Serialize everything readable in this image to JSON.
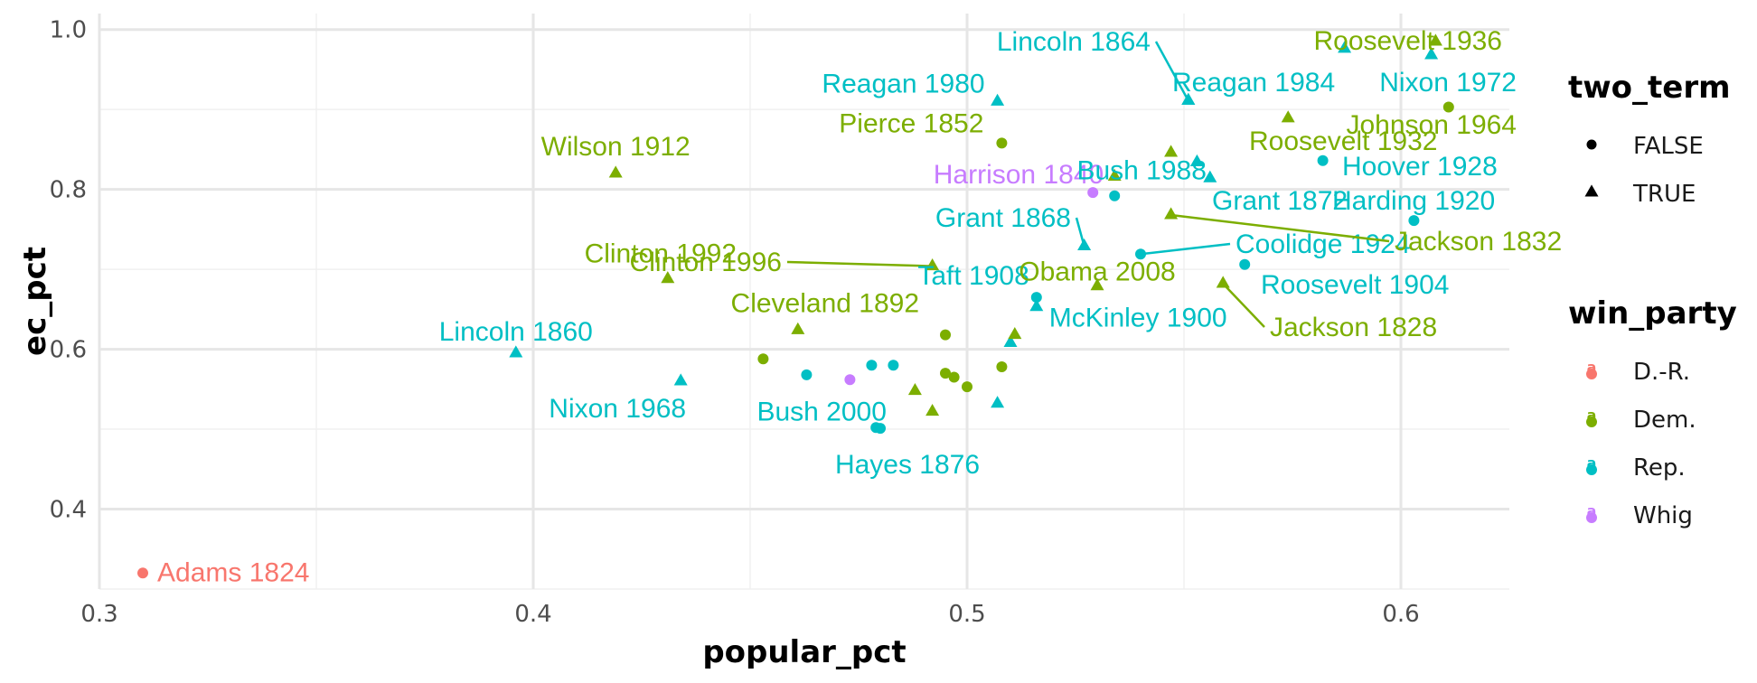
{
  "chart_data": {
    "type": "scatter",
    "xlabel": "popular_pct",
    "ylabel": "ec_pct",
    "xlim": [
      0.3,
      0.625
    ],
    "ylim": [
      0.3,
      1.02
    ],
    "x_ticks": [
      0.3,
      0.4,
      0.5,
      0.6
    ],
    "x_tick_labels": [
      "0.3",
      "0.4",
      "0.5",
      "0.6"
    ],
    "y_ticks": [
      0.4,
      0.6,
      0.8,
      1.0
    ],
    "y_tick_labels": [
      "0.4",
      "0.6",
      "0.8",
      "1.0"
    ],
    "grid": true,
    "legend_position": "right",
    "legends": [
      {
        "title": "two_term",
        "items": [
          {
            "label": "FALSE",
            "shape": "circle"
          },
          {
            "label": "TRUE",
            "shape": "triangle"
          }
        ]
      },
      {
        "title": "win_party",
        "items": [
          {
            "label": "D.-R.",
            "color": "#F8766D"
          },
          {
            "label": "Dem.",
            "color": "#7CAE00"
          },
          {
            "label": "Rep.",
            "color": "#00BFC4"
          },
          {
            "label": "Whig",
            "color": "#C77CFF"
          }
        ]
      }
    ],
    "party_colors": {
      "D.-R.": "#F8766D",
      "Dem.": "#7CAE00",
      "Rep.": "#00BFC4",
      "Whig": "#C77CFF"
    },
    "points": [
      {
        "x": 0.31,
        "y": 0.32,
        "party": "D.-R.",
        "two_term": false,
        "label": "Adams 1824"
      },
      {
        "x": 0.396,
        "y": 0.595,
        "party": "Rep.",
        "two_term": true,
        "label": "Lincoln 1860"
      },
      {
        "x": 0.419,
        "y": 0.82,
        "party": "Dem.",
        "two_term": true,
        "label": "Wilson 1912"
      },
      {
        "x": 0.431,
        "y": 0.688,
        "party": "Dem.",
        "two_term": true,
        "label": "Clinton 1992"
      },
      {
        "x": 0.434,
        "y": 0.56,
        "party": "Rep.",
        "two_term": true,
        "label": "Nixon 1968"
      },
      {
        "x": 0.453,
        "y": 0.588,
        "party": "Dem.",
        "two_term": false
      },
      {
        "x": 0.461,
        "y": 0.624,
        "party": "Dem.",
        "two_term": true,
        "label": "Cleveland 1892"
      },
      {
        "x": 0.463,
        "y": 0.568,
        "party": "Rep.",
        "two_term": false
      },
      {
        "x": 0.473,
        "y": 0.562,
        "party": "Whig",
        "two_term": false
      },
      {
        "x": 0.478,
        "y": 0.58,
        "party": "Rep.",
        "two_term": false
      },
      {
        "x": 0.479,
        "y": 0.502,
        "party": "Rep.",
        "two_term": false,
        "label": "Bush 2000"
      },
      {
        "x": 0.48,
        "y": 0.501,
        "party": "Rep.",
        "two_term": false,
        "label": "Hayes 1876"
      },
      {
        "x": 0.483,
        "y": 0.58,
        "party": "Rep.",
        "two_term": false
      },
      {
        "x": 0.488,
        "y": 0.548,
        "party": "Dem.",
        "two_term": true
      },
      {
        "x": 0.492,
        "y": 0.522,
        "party": "Dem.",
        "two_term": true
      },
      {
        "x": 0.492,
        "y": 0.704,
        "party": "Dem.",
        "two_term": true,
        "label": "Clinton 1996"
      },
      {
        "x": 0.495,
        "y": 0.618,
        "party": "Dem.",
        "two_term": false
      },
      {
        "x": 0.495,
        "y": 0.57,
        "party": "Dem.",
        "two_term": false
      },
      {
        "x": 0.497,
        "y": 0.565,
        "party": "Dem.",
        "two_term": false
      },
      {
        "x": 0.5,
        "y": 0.553,
        "party": "Dem.",
        "two_term": false
      },
      {
        "x": 0.507,
        "y": 0.91,
        "party": "Rep.",
        "two_term": true,
        "label": "Reagan 1980"
      },
      {
        "x": 0.507,
        "y": 0.532,
        "party": "Rep.",
        "two_term": true
      },
      {
        "x": 0.508,
        "y": 0.858,
        "party": "Dem.",
        "two_term": false,
        "label": "Pierce 1852"
      },
      {
        "x": 0.508,
        "y": 0.578,
        "party": "Dem.",
        "two_term": false
      },
      {
        "x": 0.51,
        "y": 0.608,
        "party": "Rep.",
        "two_term": true
      },
      {
        "x": 0.511,
        "y": 0.618,
        "party": "Dem.",
        "two_term": true
      },
      {
        "x": 0.516,
        "y": 0.665,
        "party": "Rep.",
        "two_term": false,
        "label": "Taft 1908"
      },
      {
        "x": 0.516,
        "y": 0.653,
        "party": "Rep.",
        "two_term": true,
        "label": "McKinley 1900"
      },
      {
        "x": 0.527,
        "y": 0.729,
        "party": "Rep.",
        "two_term": true,
        "label": "Grant 1868"
      },
      {
        "x": 0.529,
        "y": 0.796,
        "party": "Whig",
        "two_term": false,
        "label": "Harrison 1840"
      },
      {
        "x": 0.53,
        "y": 0.679,
        "party": "Dem.",
        "two_term": true,
        "label": "Obama 2008"
      },
      {
        "x": 0.534,
        "y": 0.816,
        "party": "Dem.",
        "two_term": true
      },
      {
        "x": 0.534,
        "y": 0.792,
        "party": "Rep.",
        "two_term": false,
        "label": "Bush 1988"
      },
      {
        "x": 0.54,
        "y": 0.719,
        "party": "Rep.",
        "two_term": false,
        "label": "Coolidge 1924"
      },
      {
        "x": 0.547,
        "y": 0.846,
        "party": "Dem.",
        "two_term": true
      },
      {
        "x": 0.547,
        "y": 0.768,
        "party": "Dem.",
        "two_term": true,
        "label": "Jackson 1832"
      },
      {
        "x": 0.551,
        "y": 0.911,
        "party": "Rep.",
        "two_term": true,
        "label": "Lincoln 1864"
      },
      {
        "x": 0.551,
        "y": 0.911,
        "party": "Rep.",
        "two_term": true,
        "label": "Reagan 1984"
      },
      {
        "x": 0.553,
        "y": 0.834,
        "party": "Rep.",
        "two_term": true
      },
      {
        "x": 0.556,
        "y": 0.814,
        "party": "Rep.",
        "two_term": true,
        "label": "Grant 1872"
      },
      {
        "x": 0.559,
        "y": 0.682,
        "party": "Dem.",
        "two_term": true,
        "label": "Jackson 1828"
      },
      {
        "x": 0.564,
        "y": 0.706,
        "party": "Rep.",
        "two_term": false,
        "label": "Roosevelt 1904"
      },
      {
        "x": 0.574,
        "y": 0.889,
        "party": "Dem.",
        "two_term": true,
        "label": "Roosevelt 1932"
      },
      {
        "x": 0.582,
        "y": 0.836,
        "party": "Rep.",
        "two_term": false,
        "label": "Hoover 1928"
      },
      {
        "x": 0.587,
        "y": 0.976,
        "party": "Rep.",
        "two_term": true
      },
      {
        "x": 0.603,
        "y": 0.761,
        "party": "Rep.",
        "two_term": false,
        "label": "Harding 1920"
      },
      {
        "x": 0.607,
        "y": 0.968,
        "party": "Rep.",
        "two_term": true,
        "label": "Nixon 1972"
      },
      {
        "x": 0.608,
        "y": 0.985,
        "party": "Dem.",
        "two_term": true,
        "label": "Roosevelt 1936"
      },
      {
        "x": 0.611,
        "y": 0.903,
        "party": "Dem.",
        "two_term": false,
        "label": "Johnson 1964"
      }
    ]
  }
}
